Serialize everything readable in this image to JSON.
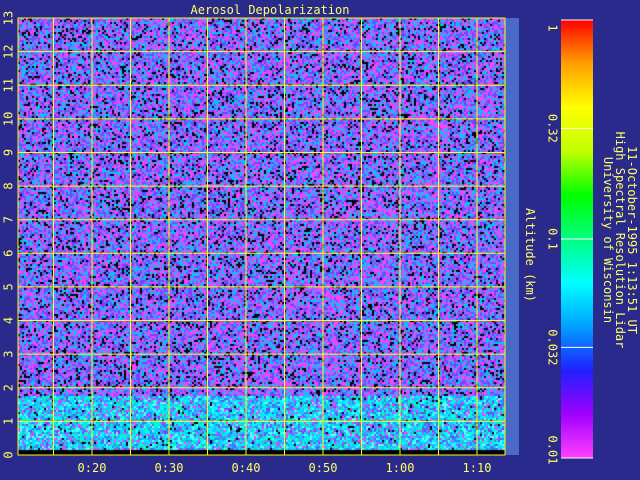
{
  "chart_data": {
    "type": "heatmap",
    "title": "Aerosol Depolarization",
    "ylabel": "Altitude (km)",
    "xlabel": "",
    "x_ticks": [
      "0:20",
      "0:30",
      "0:40",
      "0:50",
      "1:00",
      "1:10"
    ],
    "y_ticks": [
      "0",
      "1",
      "2",
      "3",
      "4",
      "5",
      "6",
      "7",
      "8",
      "9",
      "10",
      "11",
      "12",
      "13"
    ],
    "ylim": [
      0,
      13
    ],
    "grid": true,
    "colorbar": {
      "scale": "log",
      "range": [
        0.01,
        1
      ],
      "ticks": [
        "0.01",
        "0.032",
        "0.1",
        "0.32",
        "1"
      ],
      "colors": [
        "#ff40ff",
        "#a000ff",
        "#2020ff",
        "#00a0ff",
        "#00ffff",
        "#00ff80",
        "#00ff00",
        "#c0ff00",
        "#ffff00",
        "#ffa000",
        "#ff0000"
      ]
    },
    "info_lines": [
      "University of Wisconsin",
      "High Spectral Resolution Lidar",
      "11-October-1995  1:13:51 UT"
    ],
    "colors": {
      "background": "#2a2a8c",
      "grid": "#ffff00",
      "text": "#ffff66",
      "noise_palette": [
        "#7a3cff",
        "#5a5aff",
        "#c050ff",
        "#ff40ff",
        "#00c8ff",
        "#3f9fff",
        "#000000",
        "#9a70ff"
      ],
      "near_surface_palette": [
        "#00ffff",
        "#00e0ff",
        "#20c0ff",
        "#00ffb0",
        "#60ffff",
        "#3080ff"
      ]
    }
  }
}
